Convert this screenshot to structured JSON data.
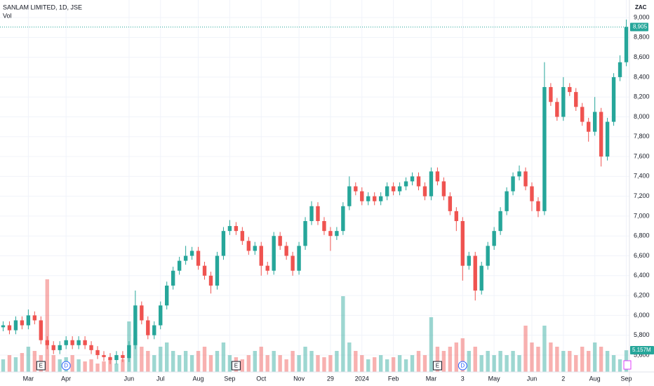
{
  "chart_data": {
    "type": "candlestick",
    "title": "SANLAM LIMITED, 1D, JSE",
    "subtitle": "Vol",
    "currency": "ZAC",
    "up_color": "#26a69a",
    "down_color": "#ef5350",
    "grid": true,
    "ylim": [
      5430,
      9177
    ],
    "yticks": [
      {
        "value": 5600,
        "label": "5,600"
      },
      {
        "value": 5800,
        "label": "5,800"
      },
      {
        "value": 6000,
        "label": "6,000"
      },
      {
        "value": 6200,
        "label": "6,200"
      },
      {
        "value": 6400,
        "label": "6,400"
      },
      {
        "value": 6600,
        "label": "6,600"
      },
      {
        "value": 6800,
        "label": "6,800"
      },
      {
        "value": 7000,
        "label": "7,000"
      },
      {
        "value": 7200,
        "label": "7,200"
      },
      {
        "value": 7400,
        "label": "7,400"
      },
      {
        "value": 7600,
        "label": "7,600"
      },
      {
        "value": 7800,
        "label": "7,800"
      },
      {
        "value": 8000,
        "label": "8,000"
      },
      {
        "value": 8200,
        "label": "8,200"
      },
      {
        "value": 8400,
        "label": "8,400"
      },
      {
        "value": 8600,
        "label": "8,600"
      },
      {
        "value": 8800,
        "label": "8,800"
      },
      {
        "value": 9000,
        "label": "9,000"
      }
    ],
    "categories": [
      null,
      null,
      null,
      null,
      "Mar",
      null,
      null,
      null,
      null,
      null,
      "Apr",
      null,
      null,
      null,
      null,
      null,
      null,
      null,
      null,
      null,
      "Jun",
      null,
      null,
      null,
      null,
      "Jul",
      null,
      null,
      null,
      null,
      null,
      "Aug",
      null,
      null,
      null,
      null,
      "Sep",
      null,
      null,
      null,
      null,
      "Oct",
      null,
      null,
      null,
      null,
      null,
      "Nov",
      null,
      null,
      null,
      null,
      "29",
      null,
      null,
      null,
      null,
      "2024",
      null,
      null,
      null,
      null,
      "Feb",
      null,
      null,
      null,
      null,
      null,
      "Mar",
      null,
      null,
      null,
      null,
      "3",
      null,
      null,
      null,
      null,
      "May",
      null,
      null,
      null,
      null,
      null,
      "Jun",
      null,
      null,
      null,
      null,
      "2",
      null,
      null,
      null,
      null,
      "Aug",
      null,
      null,
      null,
      null,
      "Sep"
    ],
    "open": [
      5880,
      5900,
      5850,
      5950,
      5900,
      6000,
      5950,
      5750,
      5700,
      5650,
      5700,
      5750,
      5700,
      5750,
      5700,
      5650,
      5600,
      5580,
      5550,
      5600,
      5570,
      5700,
      6100,
      5950,
      5800,
      5900,
      6100,
      6300,
      6450,
      6550,
      6600,
      6650,
      6500,
      6400,
      6300,
      6600,
      6850,
      6900,
      6850,
      6750,
      6650,
      6700,
      6500,
      6450,
      6800,
      6700,
      6600,
      6450,
      6700,
      6950,
      7100,
      6950,
      6850,
      6800,
      6850,
      7100,
      7300,
      7250,
      7150,
      7200,
      7150,
      7200,
      7300,
      7250,
      7300,
      7350,
      7400,
      7300,
      7200,
      7450,
      7350,
      7200,
      7050,
      6950,
      6500,
      6600,
      6250,
      6500,
      6700,
      6850,
      7050,
      7250,
      7400,
      7450,
      7300,
      7150,
      7050,
      8300,
      8150,
      8000,
      8300,
      8250,
      8100,
      7950,
      7850,
      8050,
      7600,
      7950,
      8400,
      8550
    ],
    "high": [
      5940,
      5940,
      5990,
      5990,
      6060,
      6040,
      5990,
      5790,
      5740,
      5740,
      5790,
      5790,
      5790,
      5790,
      5740,
      5690,
      5640,
      5620,
      5640,
      5640,
      5740,
      6250,
      6140,
      5990,
      5940,
      6140,
      6340,
      6490,
      6590,
      6700,
      6690,
      6690,
      6540,
      6440,
      6640,
      6890,
      6960,
      6940,
      6890,
      6790,
      6740,
      6740,
      6540,
      6840,
      6840,
      6740,
      6640,
      6740,
      6990,
      7150,
      7140,
      6990,
      6890,
      6890,
      7140,
      7400,
      7340,
      7290,
      7240,
      7240,
      7240,
      7340,
      7340,
      7340,
      7390,
      7440,
      7440,
      7340,
      7490,
      7490,
      7390,
      7240,
      7090,
      6990,
      6640,
      6640,
      6540,
      6740,
      6890,
      7090,
      7290,
      7440,
      7510,
      7490,
      7340,
      7190,
      8550,
      8340,
      8190,
      8400,
      8340,
      8290,
      8140,
      7990,
      8200,
      8090,
      7990,
      8440,
      8620,
      8980
    ],
    "low": [
      5840,
      5810,
      5810,
      5860,
      5860,
      5910,
      5710,
      5660,
      5610,
      5610,
      5660,
      5660,
      5660,
      5660,
      5610,
      5560,
      5540,
      5510,
      5510,
      5530,
      5530,
      5660,
      5910,
      5760,
      5760,
      5860,
      6060,
      6260,
      6410,
      6510,
      6560,
      6460,
      6360,
      6220,
      6260,
      6560,
      6810,
      6810,
      6710,
      6610,
      6610,
      6400,
      6410,
      6410,
      6660,
      6560,
      6400,
      6410,
      6660,
      6910,
      6910,
      6810,
      6650,
      6760,
      6810,
      7060,
      7210,
      7110,
      7110,
      7110,
      7110,
      7160,
      7210,
      7210,
      7260,
      7310,
      7260,
      7160,
      7160,
      7310,
      7160,
      7010,
      6850,
      6350,
      6460,
      6150,
      6210,
      6460,
      6660,
      6810,
      7010,
      7210,
      7360,
      7260,
      7050,
      6990,
      7010,
      8110,
      7960,
      7960,
      8210,
      8060,
      7910,
      7750,
      7810,
      7500,
      7560,
      7910,
      8360,
      8510
    ],
    "close": [
      5900,
      5850,
      5950,
      5900,
      6000,
      5950,
      5750,
      5700,
      5650,
      5700,
      5750,
      5700,
      5750,
      5700,
      5650,
      5600,
      5580,
      5550,
      5600,
      5570,
      5700,
      6100,
      5950,
      5800,
      5900,
      6100,
      6300,
      6450,
      6550,
      6600,
      6650,
      6500,
      6400,
      6300,
      6600,
      6850,
      6900,
      6850,
      6750,
      6650,
      6700,
      6500,
      6450,
      6800,
      6700,
      6600,
      6450,
      6700,
      6950,
      7100,
      6950,
      6850,
      6800,
      6850,
      7100,
      7300,
      7250,
      7150,
      7200,
      7150,
      7200,
      7300,
      7250,
      7300,
      7350,
      7400,
      7300,
      7200,
      7450,
      7350,
      7200,
      7050,
      6950,
      6500,
      6600,
      6250,
      6500,
      6700,
      6850,
      7050,
      7250,
      7400,
      7450,
      7300,
      7150,
      7050,
      8300,
      8150,
      8000,
      8300,
      8250,
      8100,
      7950,
      7850,
      8050,
      7600,
      7950,
      8400,
      8550,
      8905
    ],
    "last_close_label": "8,905",
    "volume": [
      3,
      4,
      3.5,
      4.5,
      6,
      5,
      4,
      22,
      4,
      3,
      3.5,
      4,
      3,
      2.5,
      3,
      2,
      2.5,
      3,
      2,
      3,
      12,
      8,
      6,
      5,
      4,
      6,
      7,
      5,
      4,
      5,
      4,
      5,
      6,
      4,
      5,
      7,
      4,
      3.5,
      3,
      4,
      5,
      6,
      4,
      5,
      4,
      3,
      5,
      4,
      6,
      5,
      4,
      3.5,
      4,
      5,
      18,
      7,
      5,
      4,
      3,
      3.5,
      4,
      3,
      3.5,
      4,
      3,
      4,
      5,
      4,
      13,
      6,
      5,
      6,
      7,
      8,
      5,
      6,
      4,
      5,
      4,
      5,
      4,
      5,
      4,
      11,
      7,
      6,
      11,
      7,
      6,
      5,
      5,
      4,
      6,
      5,
      7,
      6,
      5,
      4,
      3,
      5.157
    ],
    "last_volume_label": "5.157M",
    "events": [
      {
        "label": "E",
        "index": 6,
        "kind": "box"
      },
      {
        "label": "D",
        "index": 10,
        "kind": "circle"
      },
      {
        "label": "E",
        "index": 37,
        "kind": "box"
      },
      {
        "label": "E",
        "index": 69,
        "kind": "box"
      },
      {
        "label": "D",
        "index": 73,
        "kind": "circle"
      }
    ]
  }
}
